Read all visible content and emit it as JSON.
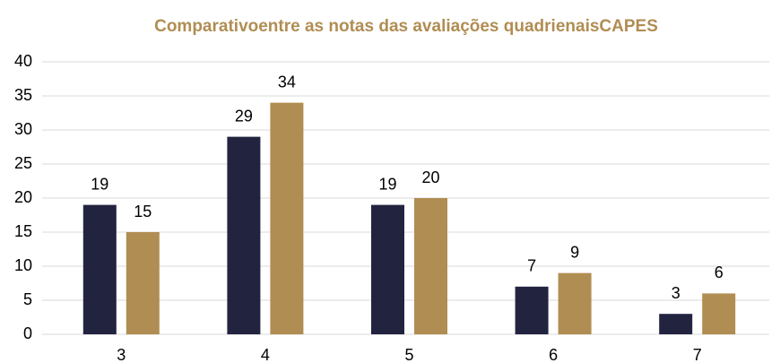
{
  "chart_data": {
    "type": "bar",
    "title": "Comparativoentre as notas das avaliações quadrienaisCAPES",
    "categories": [
      "3",
      "4",
      "5",
      "6",
      "7"
    ],
    "series": [
      {
        "color": "#22243f",
        "values": [
          19,
          29,
          19,
          7,
          3
        ]
      },
      {
        "color": "#b08d52",
        "values": [
          15,
          34,
          20,
          9,
          6
        ]
      }
    ],
    "ylim": [
      0,
      40
    ],
    "yticks": [
      0,
      5,
      10,
      15,
      20,
      25,
      30,
      35,
      40
    ],
    "grid": true
  }
}
